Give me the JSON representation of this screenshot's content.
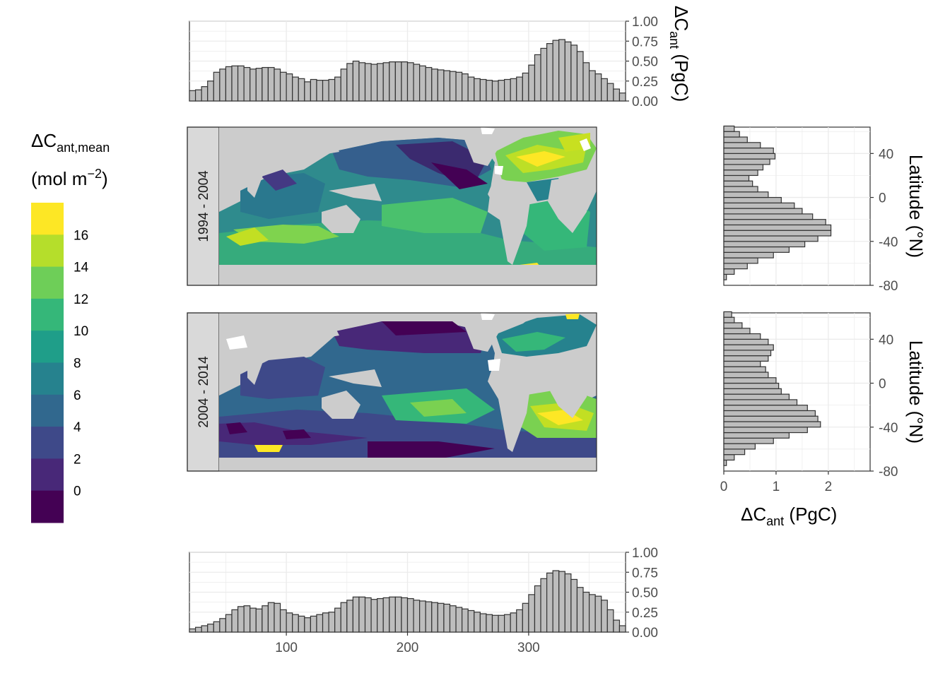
{
  "chart_data": [
    {
      "id": "lon_top",
      "type": "bar",
      "panel_label": "1994 - 2004",
      "ylabel": "ΔC",
      "ylabel_sub": "ant",
      "ylabel_unit": "(PgC)",
      "ylim": [
        0,
        1
      ],
      "y_ticks": [
        "0.00",
        "0.25",
        "0.50",
        "0.75",
        "1.00"
      ],
      "xlim": [
        20,
        380
      ],
      "bin_width": 5,
      "bin_start": 20,
      "values": [
        0.13,
        0.14,
        0.18,
        0.25,
        0.36,
        0.4,
        0.43,
        0.44,
        0.44,
        0.42,
        0.4,
        0.41,
        0.42,
        0.42,
        0.4,
        0.36,
        0.34,
        0.3,
        0.28,
        0.24,
        0.27,
        0.26,
        0.26,
        0.27,
        0.3,
        0.4,
        0.47,
        0.5,
        0.48,
        0.47,
        0.46,
        0.47,
        0.48,
        0.49,
        0.49,
        0.49,
        0.48,
        0.46,
        0.44,
        0.42,
        0.4,
        0.39,
        0.38,
        0.37,
        0.36,
        0.34,
        0.3,
        0.28,
        0.27,
        0.26,
        0.25,
        0.26,
        0.27,
        0.28,
        0.3,
        0.35,
        0.45,
        0.58,
        0.66,
        0.72,
        0.76,
        0.77,
        0.74,
        0.7,
        0.62,
        0.48,
        0.38,
        0.34,
        0.28,
        0.22,
        0.15,
        0.1
      ]
    },
    {
      "id": "lat_top",
      "type": "bar",
      "orientation": "horizontal",
      "panel_label": "1994 - 2004",
      "ylabel": "Latitude (°N)",
      "ylim": [
        -80,
        64
      ],
      "y_ticks": [
        "-80",
        "-40",
        "0",
        "40"
      ],
      "xlim": [
        0,
        2.8
      ],
      "bin_width": 5,
      "bin_start": -80,
      "values": [
        0.0,
        0.05,
        0.2,
        0.45,
        0.65,
        0.95,
        1.25,
        1.55,
        1.8,
        2.05,
        2.05,
        1.95,
        1.7,
        1.5,
        1.35,
        1.1,
        0.85,
        0.65,
        0.55,
        0.48,
        0.65,
        0.75,
        0.88,
        0.98,
        0.95,
        0.7,
        0.45,
        0.3,
        0.2
      ]
    },
    {
      "id": "lat_bottom",
      "type": "bar",
      "orientation": "horizontal",
      "panel_label": "2004 - 2014",
      "ylabel": "Latitude (°N)",
      "xlabel": "ΔC",
      "xlabel_sub": "ant",
      "xlabel_unit": "(PgC)",
      "ylim": [
        -80,
        64
      ],
      "y_ticks": [
        "-80",
        "-40",
        "0",
        "40"
      ],
      "x_ticks": [
        "0",
        "1",
        "2"
      ],
      "xlim": [
        0,
        2.8
      ],
      "bin_width": 5,
      "bin_start": -80,
      "values": [
        0.0,
        0.05,
        0.2,
        0.4,
        0.6,
        0.95,
        1.25,
        1.6,
        1.85,
        1.8,
        1.75,
        1.6,
        1.4,
        1.25,
        1.1,
        1.05,
        1.0,
        0.85,
        0.8,
        0.7,
        0.85,
        0.9,
        0.95,
        0.85,
        0.7,
        0.5,
        0.35,
        0.2,
        0.15
      ]
    },
    {
      "id": "lon_bottom",
      "type": "bar",
      "panel_label": "2004 - 2014",
      "ylim": [
        0,
        1
      ],
      "y_ticks": [
        "0.00",
        "0.25",
        "0.50",
        "0.75",
        "1.00"
      ],
      "x_ticks": [
        "100",
        "200",
        "300"
      ],
      "xlim": [
        20,
        380
      ],
      "bin_width": 5,
      "bin_start": 20,
      "values": [
        0.04,
        0.06,
        0.08,
        0.1,
        0.13,
        0.17,
        0.22,
        0.28,
        0.32,
        0.33,
        0.3,
        0.29,
        0.33,
        0.37,
        0.36,
        0.28,
        0.24,
        0.22,
        0.2,
        0.18,
        0.2,
        0.22,
        0.24,
        0.25,
        0.3,
        0.37,
        0.4,
        0.44,
        0.44,
        0.43,
        0.41,
        0.42,
        0.43,
        0.44,
        0.44,
        0.43,
        0.42,
        0.4,
        0.39,
        0.38,
        0.37,
        0.36,
        0.35,
        0.33,
        0.31,
        0.29,
        0.27,
        0.25,
        0.23,
        0.22,
        0.21,
        0.21,
        0.22,
        0.24,
        0.28,
        0.36,
        0.47,
        0.58,
        0.67,
        0.74,
        0.77,
        0.76,
        0.73,
        0.66,
        0.56,
        0.5,
        0.47,
        0.45,
        0.4,
        0.28,
        0.15,
        0.08
      ]
    }
  ],
  "maps": [
    {
      "id": "map_top",
      "label": "1994 - 2004"
    },
    {
      "id": "map_bottom",
      "label": "2004 - 2014"
    }
  ],
  "legend": {
    "title_main": "ΔC",
    "title_sub": "ant,mean",
    "unit_pre": "(mol m",
    "unit_sup": "−2",
    "unit_post": ")",
    "labels": [
      "16",
      "14",
      "12",
      "10",
      "8",
      "6",
      "4",
      "2",
      "0"
    ],
    "colors": [
      "#fde725",
      "#b5de2b",
      "#6ece58",
      "#35b779",
      "#1f9e89",
      "#26828e",
      "#31688e",
      "#3e4989",
      "#482878",
      "#440154"
    ]
  },
  "colors": {
    "bar_fill": "#bdbdbd",
    "bar_stroke": "#333333",
    "land": "#cccccc",
    "grid": "#ebebeb",
    "strip_bg": "#d9d9d9"
  }
}
